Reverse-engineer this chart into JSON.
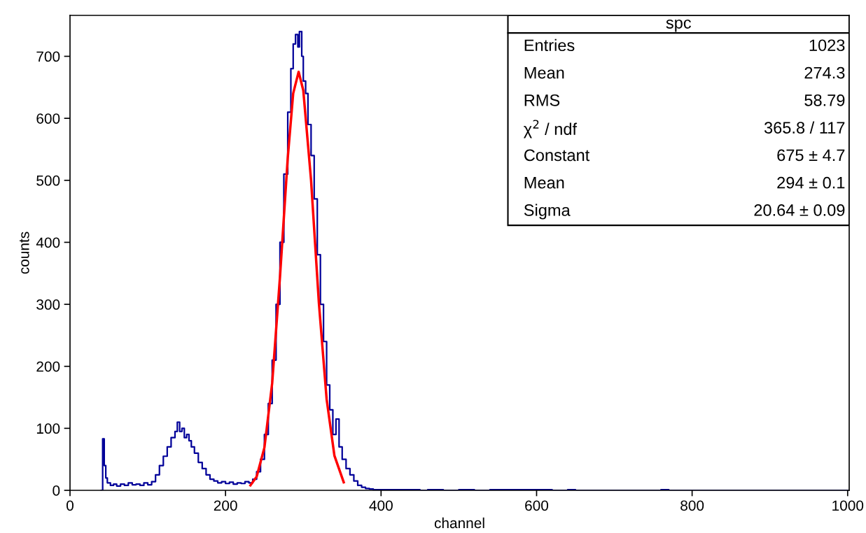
{
  "chart_data": {
    "type": "step",
    "xlabel": "channel",
    "ylabel": "counts",
    "xlim": [
      0,
      1002
    ],
    "ylim": [
      0,
      766
    ],
    "xticks": [
      0,
      200,
      400,
      600,
      800,
      1000
    ],
    "yticks": [
      0,
      100,
      200,
      300,
      400,
      500,
      600,
      700
    ],
    "grid": false,
    "legend": false,
    "series": [
      {
        "color": "#000099",
        "x": [
          40,
          42,
          44,
          46,
          48,
          52,
          56,
          60,
          65,
          70,
          75,
          80,
          85,
          90,
          95,
          100,
          105,
          110,
          115,
          120,
          125,
          130,
          135,
          138,
          141,
          144,
          147,
          150,
          153,
          156,
          160,
          165,
          170,
          175,
          180,
          185,
          190,
          195,
          200,
          205,
          210,
          215,
          220,
          225,
          230,
          235,
          240,
          245,
          250,
          255,
          260,
          265,
          270,
          275,
          280,
          284,
          287,
          290,
          293,
          295,
          298,
          300,
          303,
          306,
          310,
          314,
          318,
          322,
          326,
          330,
          334,
          338,
          342,
          346,
          350,
          355,
          360,
          365,
          370,
          375,
          380,
          385,
          390,
          400,
          420,
          440,
          450,
          460,
          480,
          500,
          520,
          540,
          560,
          580,
          600,
          620,
          640,
          650,
          700,
          760,
          770,
          1000
        ],
        "values": [
          0,
          83,
          40,
          20,
          12,
          8,
          10,
          7,
          10,
          8,
          12,
          9,
          10,
          8,
          12,
          9,
          14,
          25,
          40,
          55,
          70,
          85,
          95,
          110,
          95,
          100,
          85,
          90,
          80,
          70,
          60,
          45,
          35,
          25,
          18,
          15,
          12,
          14,
          11,
          13,
          10,
          12,
          11,
          14,
          12,
          18,
          30,
          50,
          90,
          140,
          210,
          300,
          400,
          510,
          610,
          680,
          720,
          735,
          715,
          740,
          700,
          660,
          640,
          590,
          540,
          470,
          380,
          300,
          240,
          170,
          130,
          90,
          115,
          70,
          50,
          35,
          25,
          15,
          8,
          5,
          3,
          2,
          1,
          1,
          1,
          1,
          0,
          1,
          0,
          1,
          0,
          1,
          1,
          1,
          1,
          0,
          1,
          0,
          0,
          1,
          0,
          0
        ]
      },
      {
        "type": "line",
        "color": "#ff0000",
        "x": [
          232,
          240,
          250,
          260,
          270,
          280,
          287,
          294,
          300,
          310,
          320,
          330,
          340,
          352
        ],
        "values": [
          8,
          22,
          69,
          173,
          344,
          536,
          640,
          675,
          645,
          500,
          303,
          147,
          56,
          13
        ]
      }
    ],
    "annotations": [
      "spc",
      "Entries",
      "1023",
      "Mean",
      "274.3",
      "RMS",
      "58.79",
      "χ$^{2}$ / ndf",
      "365.8 / 117",
      "Constant",
      "675 ± 4.7",
      "Mean",
      "294 ± 0.1",
      "Sigma",
      "20.64 ± 0.09"
    ]
  }
}
